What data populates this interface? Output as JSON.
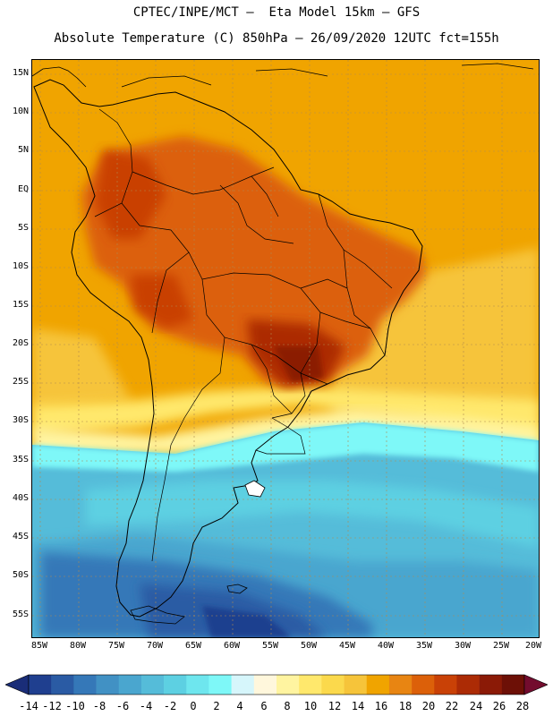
{
  "header": {
    "line1": "CPTEC/INPE/MCT –  Eta Model 15km – GFS",
    "line2": "Absolute Temperature (C) 850hPa – 26/09/2020 12UTC fct=155h"
  },
  "axes": {
    "lat_labels": [
      "15N",
      "10N",
      "5N",
      "EQ",
      "5S",
      "10S",
      "15S",
      "20S",
      "25S",
      "30S",
      "35S",
      "40S",
      "45S",
      "50S",
      "55S"
    ],
    "lon_labels": [
      "85W",
      "80W",
      "75W",
      "70W",
      "65W",
      "60W",
      "55W",
      "50W",
      "45W",
      "40W",
      "35W",
      "30W",
      "25W",
      "20W"
    ]
  },
  "colorbar": {
    "labels": [
      "-14",
      "-12",
      "-10",
      "-8",
      "-6",
      "-4",
      "-2",
      "0",
      "2",
      "4",
      "6",
      "8",
      "10",
      "12",
      "14",
      "16",
      "18",
      "20",
      "22",
      "24",
      "26",
      "28"
    ],
    "colors": [
      "#1f3f8f",
      "#2a5ba4",
      "#3578b8",
      "#4191c4",
      "#4aa6cf",
      "#55bcd9",
      "#5dd0e2",
      "#6ee6ee",
      "#7ef8f8",
      "#d6f6fb",
      "#fff7dc",
      "#fff4a0",
      "#ffe86c",
      "#fbd94c",
      "#f6c43a",
      "#f0a400",
      "#e88512",
      "#dc6009",
      "#c94106",
      "#ac2b05",
      "#8b1a06",
      "#6d1006"
    ],
    "under_color": "#1a2d78",
    "over_color": "#730c2e"
  }
}
